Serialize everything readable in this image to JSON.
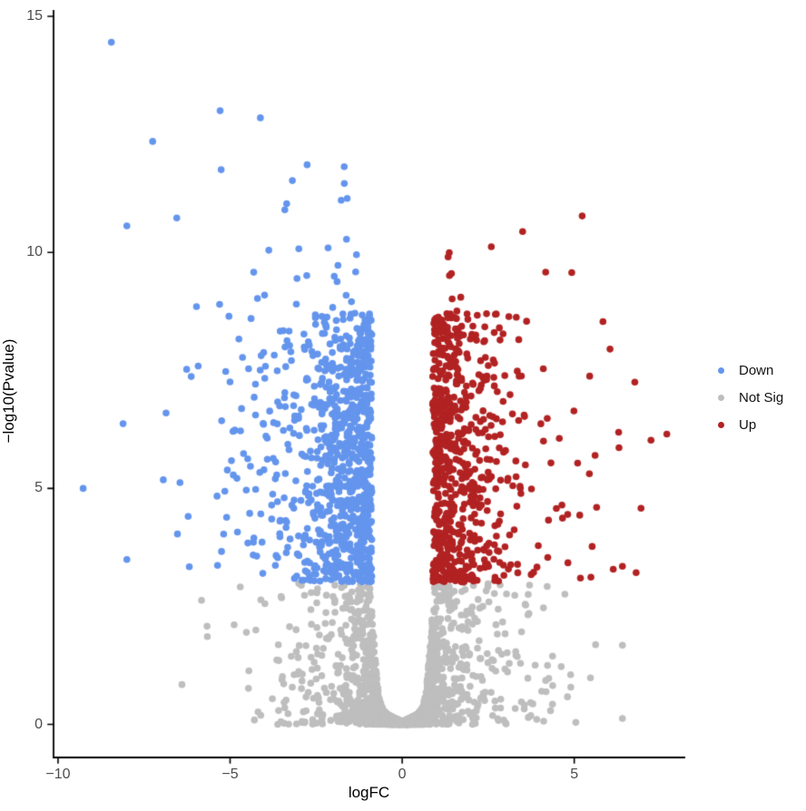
{
  "chart_data": {
    "type": "scatter",
    "variant": "volcano-plot",
    "title": "",
    "xlabel": "logFC",
    "ylabel": "−log10(Pvalue)",
    "grid": false,
    "background": "#ffffff",
    "axis_line_color": "#000000",
    "tick_label_color": "#4d4d4d",
    "marker_radius_px": 3.8,
    "x_axis": {
      "range": [
        -10.13,
        8.2
      ],
      "ticks": [
        {
          "v": -10,
          "label": "−10"
        },
        {
          "v": -5,
          "label": "−5"
        },
        {
          "v": 0,
          "label": "0"
        },
        {
          "v": 5,
          "label": "5"
        }
      ]
    },
    "y_axis": {
      "range": [
        -0.7,
        15.0
      ],
      "ticks": [
        {
          "v": 0,
          "label": "0"
        },
        {
          "v": 5,
          "label": "5"
        },
        {
          "v": 10,
          "label": "10"
        },
        {
          "v": 15,
          "label": "15"
        }
      ]
    },
    "thresholds": {
      "abs_logFC_cutoff": 1,
      "neg_log10_pvalue_cutoff": 3
    },
    "legend": {
      "position": "right",
      "items": [
        {
          "key": "down",
          "label": "Down",
          "color": "#6495ED"
        },
        {
          "key": "not_sig",
          "label": "Not Sig",
          "color": "#BEBEBE"
        },
        {
          "key": "up",
          "label": "Up",
          "color": "#B22222"
        }
      ]
    },
    "point_cloud_generator": {
      "description": "Several thousand overlapping gene points form the volcano shape; cloud is reproduced deterministically from these distribution parameters (values read from the screenshot: dense colored bands |logFC| 1-3 between p 3-8.7, grey funnel below p=3 with empty U-shaped notch near logFC 0, sparse outliers to logFC -9.3/+7.7 and p 14.5).",
      "seed": 42,
      "classes": {
        "not_sig": {
          "n": 2750,
          "abs_logfc_halfnormal_sigmas": [
            0.62,
            1.9
          ],
          "wide_component_share": 0.28,
          "abs_logfc_cap": 6.4,
          "y_density_power": 1.35,
          "y_envelope": "min(3, 0.06 + 0.35*m + 3/(1+exp(-(m-0.82)*14)))"
        },
        "down": {
          "n": 880,
          "abs_logfc_base": 0.88,
          "abs_logfc_exp_scale": 1.15,
          "abs_logfc_cap": 8.0,
          "y_base": 3.02,
          "y_band_height": 5.68,
          "y_density_power": 1.15,
          "tail_share": 0.06,
          "tail_exp_scale": 1.1,
          "tail_cap": 13.0
        },
        "up": {
          "n": 690,
          "abs_logfc_base": 0.88,
          "abs_logfc_exp_scale": 0.92,
          "abs_logfc_cap": 7.2,
          "y_base": 3.02,
          "y_band_height": 5.68,
          "y_density_power": 1.25,
          "tail_share": 0.025,
          "tail_exp_scale": 1.0,
          "tail_cap": 10.9
        }
      }
    },
    "notable_points": [
      {
        "series": "down",
        "logFC": -8.45,
        "neg_log10_p": 14.45
      },
      {
        "series": "down",
        "logFC": -4.12,
        "neg_log10_p": 12.85
      },
      {
        "series": "down",
        "logFC": -7.25,
        "neg_log10_p": 12.35
      },
      {
        "series": "down",
        "logFC": -5.26,
        "neg_log10_p": 11.75
      },
      {
        "series": "down",
        "logFC": -3.19,
        "neg_log10_p": 11.52
      },
      {
        "series": "down",
        "logFC": -6.55,
        "neg_log10_p": 10.73
      },
      {
        "series": "down",
        "logFC": -9.27,
        "neg_log10_p": 5.0
      },
      {
        "series": "down",
        "logFC": -8.11,
        "neg_log10_p": 6.37
      },
      {
        "series": "up",
        "logFC": 5.23,
        "neg_log10_p": 10.77
      },
      {
        "series": "up",
        "logFC": 3.5,
        "neg_log10_p": 10.44
      },
      {
        "series": "up",
        "logFC": 2.59,
        "neg_log10_p": 10.12
      },
      {
        "series": "up",
        "logFC": 4.17,
        "neg_log10_p": 9.58
      },
      {
        "series": "up",
        "logFC": 6.76,
        "neg_log10_p": 7.25
      },
      {
        "series": "up",
        "logFC": 7.69,
        "neg_log10_p": 6.15
      },
      {
        "series": "up",
        "logFC": 7.23,
        "neg_log10_p": 6.02
      },
      {
        "series": "up",
        "logFC": 6.29,
        "neg_log10_p": 6.19
      },
      {
        "series": "up",
        "logFC": 5.44,
        "neg_log10_p": 5.31
      },
      {
        "series": "up",
        "logFC": 5.65,
        "neg_log10_p": 4.6
      },
      {
        "series": "up",
        "logFC": 6.94,
        "neg_log10_p": 4.58
      },
      {
        "series": "up",
        "logFC": 5.52,
        "neg_log10_p": 3.77
      },
      {
        "series": "up",
        "logFC": 6.4,
        "neg_log10_p": 3.35
      },
      {
        "series": "up",
        "logFC": 5.18,
        "neg_log10_p": 3.1
      },
      {
        "series": "not_sig",
        "logFC": -5.83,
        "neg_log10_p": 2.63
      },
      {
        "series": "not_sig",
        "logFC": -5.67,
        "neg_log10_p": 2.08
      },
      {
        "series": "not_sig",
        "logFC": 5.62,
        "neg_log10_p": 1.69
      },
      {
        "series": "not_sig",
        "logFC": 4.9,
        "neg_log10_p": 0.79
      }
    ]
  }
}
